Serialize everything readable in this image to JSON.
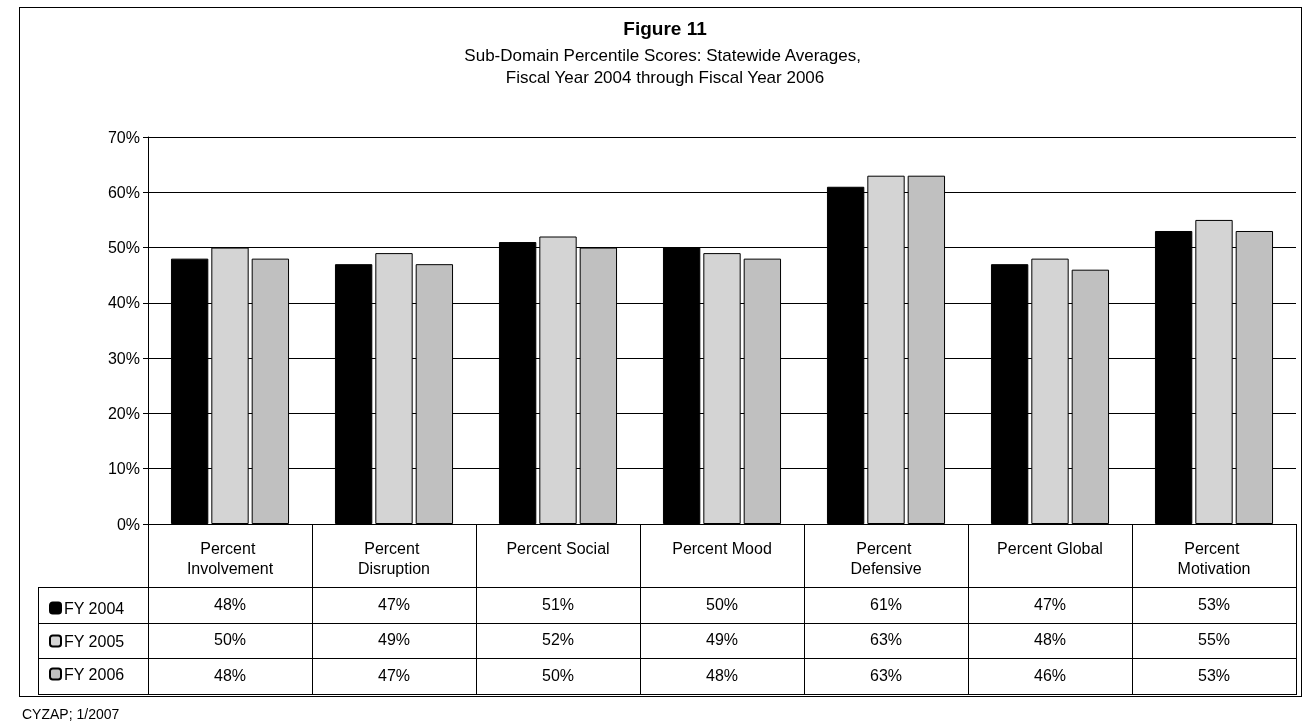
{
  "chart_data": {
    "type": "bar",
    "title": "Figure 11",
    "subtitle": "Sub-Domain Percentile Scores: Statewide Averages, Fiscal Year 2004 through Fiscal Year 2006",
    "categories": [
      "Percent Involvement",
      "Percent Disruption",
      "Percent Social",
      "Percent Mood",
      "Percent Defensive",
      "Percent Global",
      "Percent Motivation"
    ],
    "series": [
      {
        "name": "FY 2004",
        "color": "#000000",
        "values": [
          48,
          47,
          51,
          50,
          61,
          47,
          53
        ],
        "value_labels": [
          "48%",
          "47%",
          "51%",
          "50%",
          "61%",
          "47%",
          "53%"
        ]
      },
      {
        "name": "FY 2005",
        "color": "#d4d4d4",
        "values": [
          50,
          49,
          52,
          49,
          63,
          48,
          55
        ],
        "value_labels": [
          "50%",
          "49%",
          "52%",
          "49%",
          "63%",
          "48%",
          "55%"
        ]
      },
      {
        "name": "FY 2006",
        "color": "#c0c0c0",
        "values": [
          48,
          47,
          50,
          48,
          63,
          46,
          53
        ],
        "value_labels": [
          "48%",
          "47%",
          "50%",
          "48%",
          "63%",
          "46%",
          "53%"
        ]
      }
    ],
    "ylim": [
      0,
      70
    ],
    "yticks": [
      {
        "value": 0,
        "label": "0%"
      },
      {
        "value": 10,
        "label": "10%"
      },
      {
        "value": 20,
        "label": "20%"
      },
      {
        "value": 30,
        "label": "30%"
      },
      {
        "value": 40,
        "label": "40%"
      },
      {
        "value": 50,
        "label": "50%"
      },
      {
        "value": 60,
        "label": "60%"
      },
      {
        "value": 70,
        "label": "70%"
      }
    ],
    "grid": "y",
    "legend": "bottom left",
    "annotations": [
      "CYZAP; 1/2007"
    ]
  }
}
